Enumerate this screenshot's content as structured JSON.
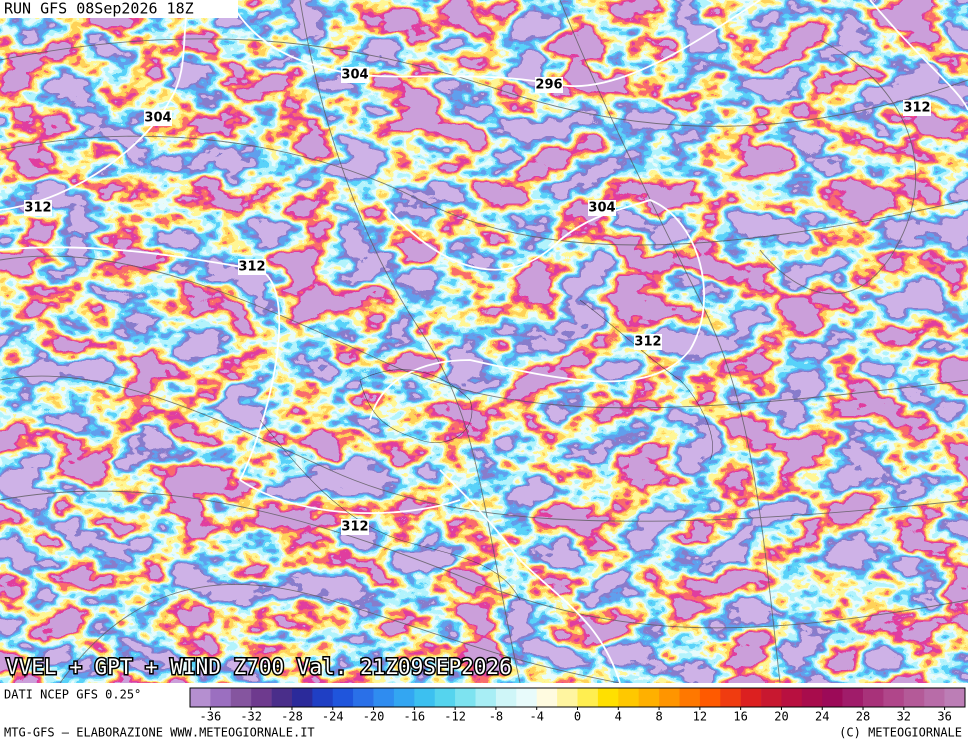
{
  "header": {
    "run": "RUN GFS 08Sep2026 18Z"
  },
  "map": {
    "title": "VVEL + GPT + WIND Z700 Val. 21Z09SEP2026",
    "contour_labels": [
      304,
      296,
      304,
      312,
      312,
      304,
      312,
      312,
      312
    ]
  },
  "colorbar": {
    "source": "DATI NCEP GFS 0.25°",
    "range": [
      -38,
      38
    ],
    "ticks": [
      -36,
      -32,
      -28,
      -24,
      -20,
      -16,
      -12,
      -8,
      -4,
      0,
      4,
      8,
      12,
      16,
      20,
      24,
      28,
      32,
      36
    ],
    "colors": [
      "#b58fd0",
      "#9b6fc0",
      "#85559f",
      "#6e3a8e",
      "#4a2e8a",
      "#2b2a9a",
      "#1f3fc4",
      "#1f55dc",
      "#2a70e8",
      "#2f8cf0",
      "#33a6f2",
      "#3cc0f0",
      "#55d4ee",
      "#7de3f0",
      "#a8eef5",
      "#cff6f8",
      "#e8fbfb",
      "#fffbe0",
      "#fff5a0",
      "#ffee50",
      "#ffe000",
      "#ffc800",
      "#ffb000",
      "#ff9500",
      "#ff7800",
      "#ff5a00",
      "#f03c10",
      "#dc2020",
      "#c81830",
      "#b81040",
      "#a80c4c",
      "#9c0a58",
      "#a01c6a",
      "#a8327a",
      "#b0468a",
      "#b45a98",
      "#b86ca8",
      "#bc7eb6"
    ]
  },
  "footer": {
    "credit": "MTG-GFS — ELABORAZIONE WWW.METEOGIORNALE.IT",
    "copyright": "(C) METEOGIORNALE"
  }
}
